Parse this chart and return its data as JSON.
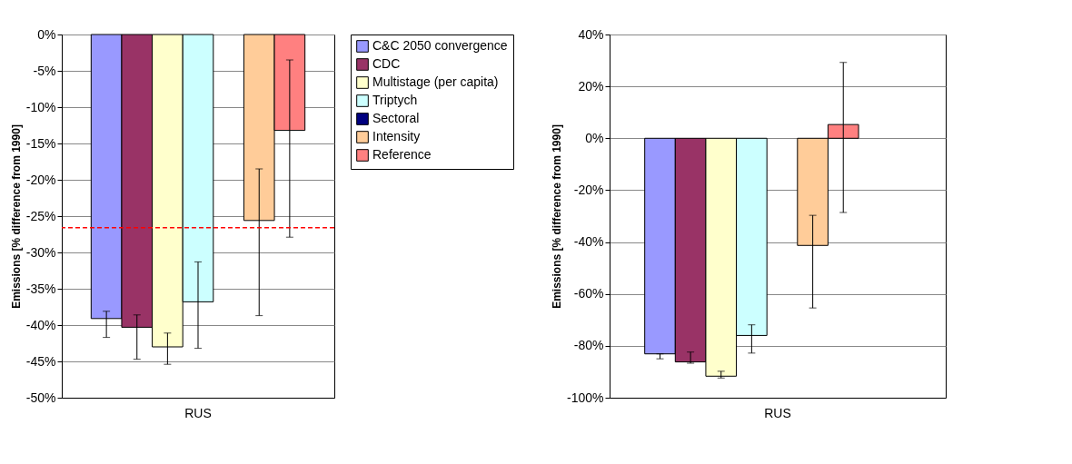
{
  "chart_data": [
    {
      "type": "bar",
      "categories": [
        "RUS"
      ],
      "ylabel": "Emissions [% difference from 1990]",
      "ylim": [
        -50,
        0
      ],
      "yticks": [
        {
          "value": -50,
          "label": "-50%"
        },
        {
          "value": -45,
          "label": "-45%"
        },
        {
          "value": -40,
          "label": "-40%"
        },
        {
          "value": -35,
          "label": "-35%"
        },
        {
          "value": -30,
          "label": "-30%"
        },
        {
          "value": -25,
          "label": "-25%"
        },
        {
          "value": -20,
          "label": "-20%"
        },
        {
          "value": -15,
          "label": "-15%"
        },
        {
          "value": -10,
          "label": "-10%"
        },
        {
          "value": -5,
          "label": "-5%"
        },
        {
          "value": 0,
          "label": "0%"
        }
      ],
      "grid": "y",
      "legend": "right",
      "ref_lines": [
        {
          "axis": "y",
          "value": -26.6,
          "color": "#ff0000",
          "line_style": "dashed"
        }
      ],
      "series": [
        {
          "name": "C&C 2050 convergence",
          "color": "#9999ff",
          "values": [
            -39.1
          ],
          "errors": [
            [
              -41.7,
              -38.1
            ]
          ]
        },
        {
          "name": "CDC",
          "color": "#993366",
          "values": [
            -40.3
          ],
          "errors": [
            [
              -44.7,
              -38.6
            ]
          ]
        },
        {
          "name": "Multistage (per capita)",
          "color": "#ffffcc",
          "values": [
            -43.0
          ],
          "errors": [
            [
              -45.4,
              -41.1
            ]
          ]
        },
        {
          "name": "Triptych",
          "color": "#ccffff",
          "values": [
            -36.8
          ],
          "errors": [
            [
              -43.2,
              -31.3
            ]
          ]
        },
        {
          "name": "Sectoral",
          "color": "#000080",
          "values": [
            null
          ]
        },
        {
          "name": "Intensity",
          "color": "#ffcc99",
          "values": [
            -25.6
          ],
          "errors": [
            [
              -38.7,
              -18.5
            ]
          ]
        },
        {
          "name": "Reference",
          "color": "#ff8080",
          "values": [
            -13.2
          ],
          "errors": [
            [
              -27.9,
              -3.5
            ]
          ]
        }
      ]
    },
    {
      "type": "bar",
      "categories": [
        "RUS"
      ],
      "ylabel": "Emissions [% difference from 1990]",
      "ylim": [
        -100,
        40
      ],
      "yticks": [
        {
          "value": -100,
          "label": "-100%"
        },
        {
          "value": -80,
          "label": "-80%"
        },
        {
          "value": -60,
          "label": "-60%"
        },
        {
          "value": -40,
          "label": "-40%"
        },
        {
          "value": -20,
          "label": "-20%"
        },
        {
          "value": 0,
          "label": "0%"
        },
        {
          "value": 20,
          "label": "20%"
        },
        {
          "value": 40,
          "label": "40%"
        }
      ],
      "grid": "y",
      "series": [
        {
          "color": "#9999ff",
          "values": [
            -83.1
          ],
          "errors": [
            [
              -85.0,
              -83.1
            ]
          ]
        },
        {
          "color": "#993366",
          "values": [
            -86.2
          ],
          "errors": [
            [
              -86.7,
              -82.4
            ]
          ]
        },
        {
          "color": "#ffffcc",
          "values": [
            -91.7
          ],
          "errors": [
            [
              -92.4,
              -89.8
            ]
          ]
        },
        {
          "color": "#ccffff",
          "values": [
            -76.0
          ],
          "errors": [
            [
              -82.8,
              -71.9
            ]
          ]
        },
        {
          "color": "#000080",
          "values": [
            null
          ]
        },
        {
          "color": "#ffcc99",
          "values": [
            -41.3
          ],
          "errors": [
            [
              -65.4,
              -29.7
            ]
          ]
        },
        {
          "color": "#ff8080",
          "values": [
            5.3
          ],
          "errors": [
            [
              -28.6,
              29.2
            ]
          ]
        }
      ]
    }
  ]
}
